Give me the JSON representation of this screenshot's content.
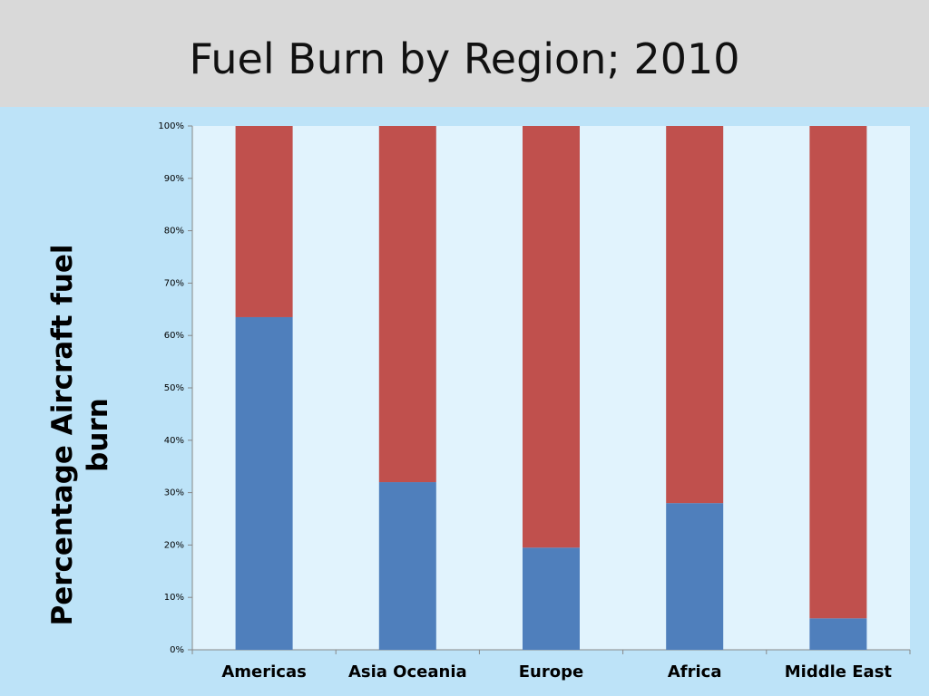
{
  "chart_data": {
    "type": "stacked_bar",
    "title": "Fuel Burn by Region; 2010",
    "y_label": "Percentage Aircraft fuel burn",
    "categories": [
      "Americas",
      "Asia Oceania",
      "Europe",
      "Africa",
      "Middle East"
    ],
    "series": [
      {
        "color": "#4f7fbc",
        "values": [
          63.5,
          32,
          19.5,
          28,
          6
        ]
      },
      {
        "color": "#c0504d",
        "values": [
          36.5,
          68,
          80.5,
          72,
          94
        ]
      }
    ],
    "ylim": [
      0,
      100
    ],
    "yticks": [
      {
        "value": 0,
        "label": "0%"
      },
      {
        "value": 10,
        "label": "10%"
      },
      {
        "value": 20,
        "label": "20%"
      },
      {
        "value": 30,
        "label": "30%"
      },
      {
        "value": 40,
        "label": "40%"
      },
      {
        "value": 50,
        "label": "50%"
      },
      {
        "value": 60,
        "label": "60%"
      },
      {
        "value": 70,
        "label": "70%"
      },
      {
        "value": 80,
        "label": "80%"
      },
      {
        "value": 90,
        "label": "90%"
      },
      {
        "value": 100,
        "label": "100%"
      }
    ]
  }
}
